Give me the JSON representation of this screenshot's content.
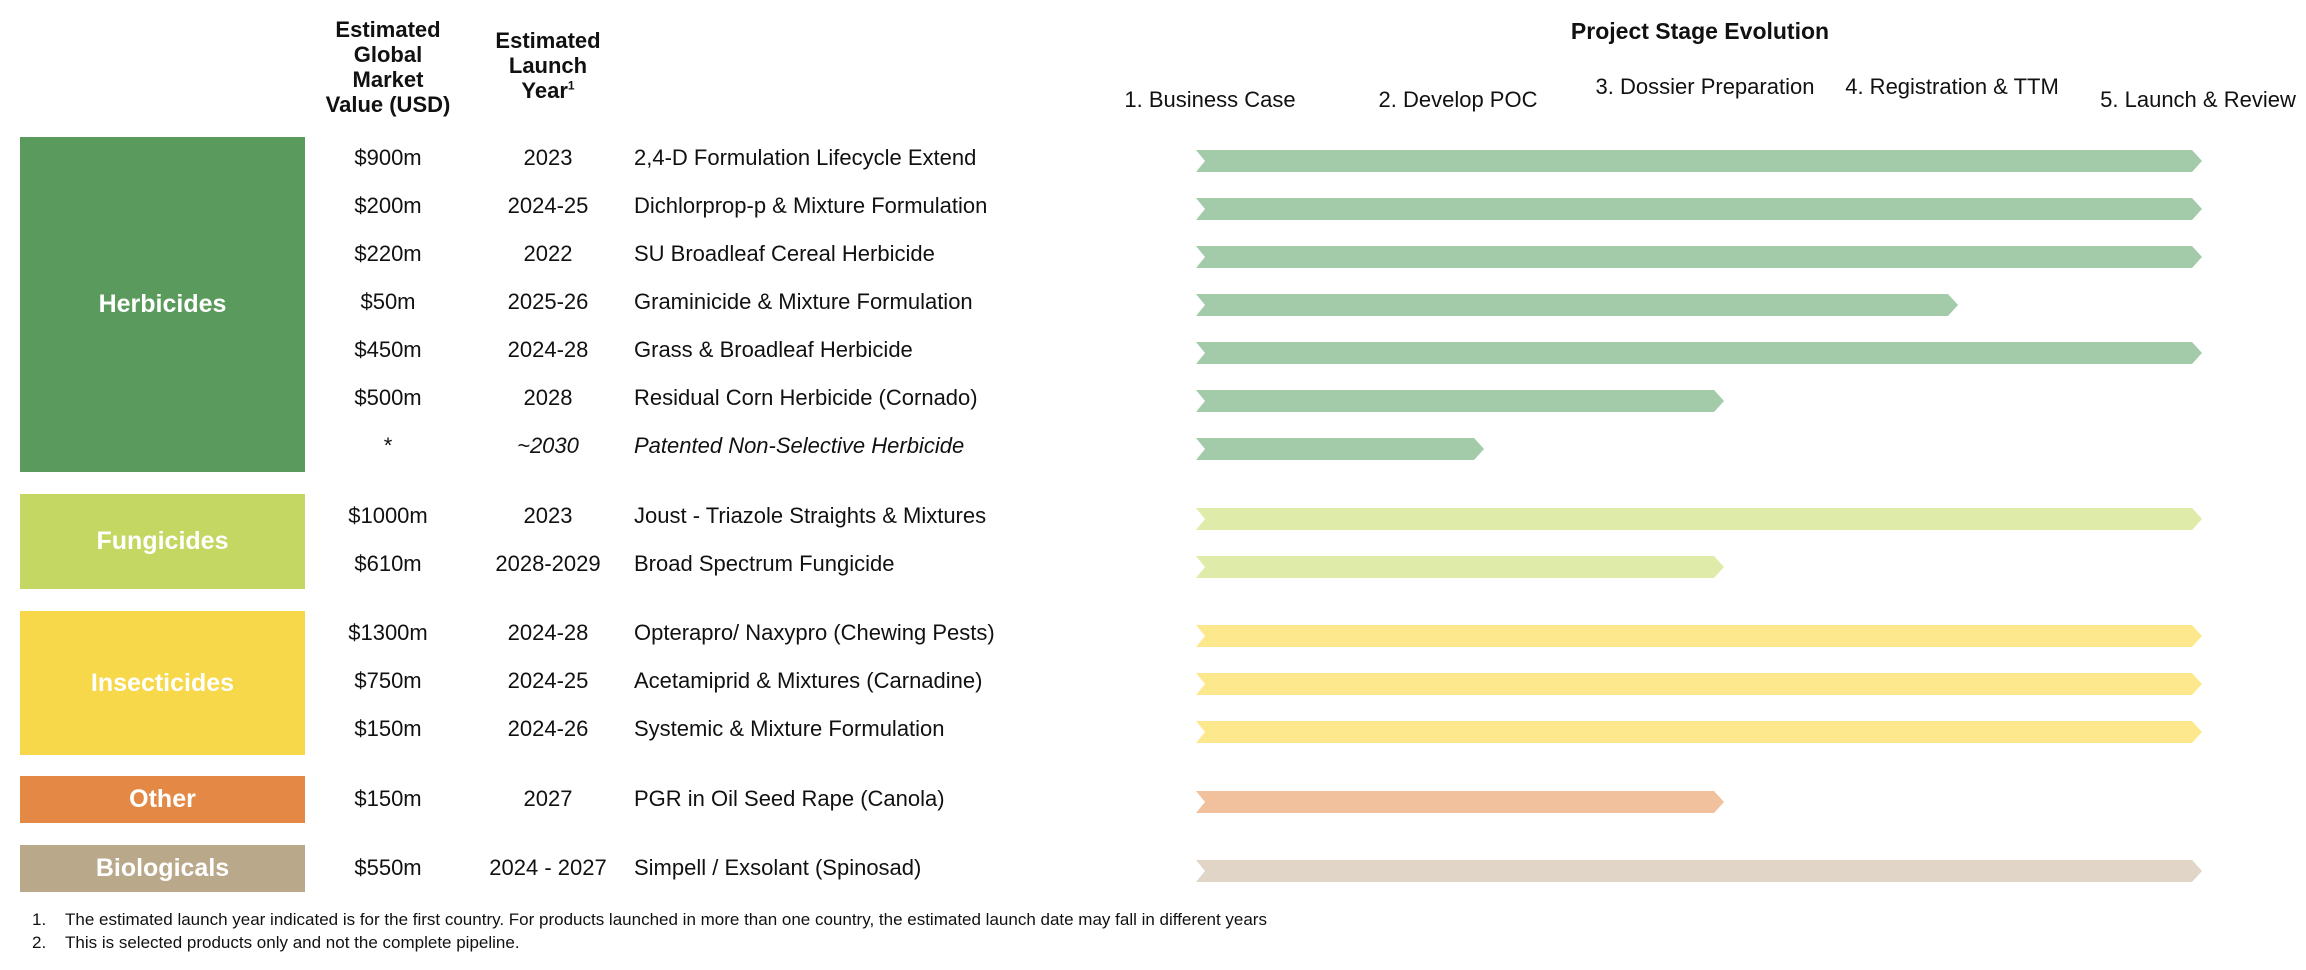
{
  "headers": {
    "value": [
      "Estimated",
      "Global",
      "Market",
      "Value (USD)"
    ],
    "launch": [
      "Estimated",
      "Launch",
      "Year"
    ],
    "launch_sup": "1"
  },
  "chart_data": {
    "type": "bar",
    "title": "Project Stage Evolution",
    "stages": [
      "1. Business Case",
      "2. Develop POC",
      "3. Dossier Preparation",
      "4. Registration & TTM",
      "5. Launch & Review"
    ],
    "categories": [
      {
        "name": "Herbicides",
        "color": "#5a9a5c",
        "bar_color": "#a3cba9"
      },
      {
        "name": "Fungicides",
        "color": "#c3d762",
        "bar_color": "#dfeba9"
      },
      {
        "name": "Insecticides",
        "color": "#f7d84a",
        "bar_color": "#fde88d"
      },
      {
        "name": "Other",
        "color": "#e38845",
        "bar_color": "#f0c19c"
      },
      {
        "name": "Biologicals",
        "color": "#b9a88a",
        "bar_color": "#e0d5c7"
      }
    ],
    "products": [
      {
        "category": "Herbicides",
        "value": "$900m",
        "year": "2023",
        "name": "2,4-D Formulation Lifecycle Extend",
        "stage": 5.0,
        "italic": false
      },
      {
        "category": "Herbicides",
        "value": "$200m",
        "year": "2024-25",
        "name": "Dichlorprop-p & Mixture Formulation",
        "stage": 5.0,
        "italic": false
      },
      {
        "category": "Herbicides",
        "value": "$220m",
        "year": "2022",
        "name": "SU Broadleaf Cereal Herbicide",
        "stage": 5.0,
        "italic": false
      },
      {
        "category": "Herbicides",
        "value": "$50m",
        "year": "2025-26",
        "name": "Graminicide & Mixture Formulation",
        "stage": 4.0,
        "italic": false
      },
      {
        "category": "Herbicides",
        "value": "$450m",
        "year": "2024-28",
        "name": "Grass & Broadleaf Herbicide",
        "stage": 5.0,
        "italic": false
      },
      {
        "category": "Herbicides",
        "value": "$500m",
        "year": "2028",
        "name": "Residual Corn Herbicide (Cornado)",
        "stage": 3.0,
        "italic": false
      },
      {
        "category": "Herbicides",
        "value": "*",
        "year": "~2030",
        "name": "Patented Non-Selective Herbicide",
        "stage": 2.0,
        "italic": true
      },
      {
        "category": "Fungicides",
        "value": "$1000m",
        "year": "2023",
        "name": "Joust - Triazole Straights & Mixtures",
        "stage": 5.0,
        "italic": false
      },
      {
        "category": "Fungicides",
        "value": "$610m",
        "year": "2028-2029",
        "name": "Broad Spectrum Fungicide",
        "stage": 3.0,
        "italic": false
      },
      {
        "category": "Insecticides",
        "value": "$1300m",
        "year": "2024-28",
        "name": "Opterapro/ Naxypro (Chewing Pests)",
        "stage": 5.0,
        "italic": false
      },
      {
        "category": "Insecticides",
        "value": "$750m",
        "year": "2024-25",
        "name": "Acetamiprid & Mixtures (Carnadine)",
        "stage": 5.0,
        "italic": false
      },
      {
        "category": "Insecticides",
        "value": "$150m",
        "year": "2024-26",
        "name": "Systemic & Mixture Formulation",
        "stage": 5.0,
        "italic": false
      },
      {
        "category": "Other",
        "value": "$150m",
        "year": "2027",
        "name": "PGR in Oil Seed Rape (Canola)",
        "stage": 3.0,
        "italic": false
      },
      {
        "category": "Biologicals",
        "value": "$550m",
        "year": "2024 - 2027",
        "name": "Simpell / Exsolant (Spinosad)",
        "stage": 5.0,
        "italic": false
      }
    ]
  },
  "footnotes": [
    {
      "num": "1.",
      "text": "The estimated launch year indicated is for the first country. For products launched in more than one country, the estimated launch date may fall in different years"
    },
    {
      "num": "2.",
      "text": "This is selected products only and not the complete pipeline."
    }
  ]
}
